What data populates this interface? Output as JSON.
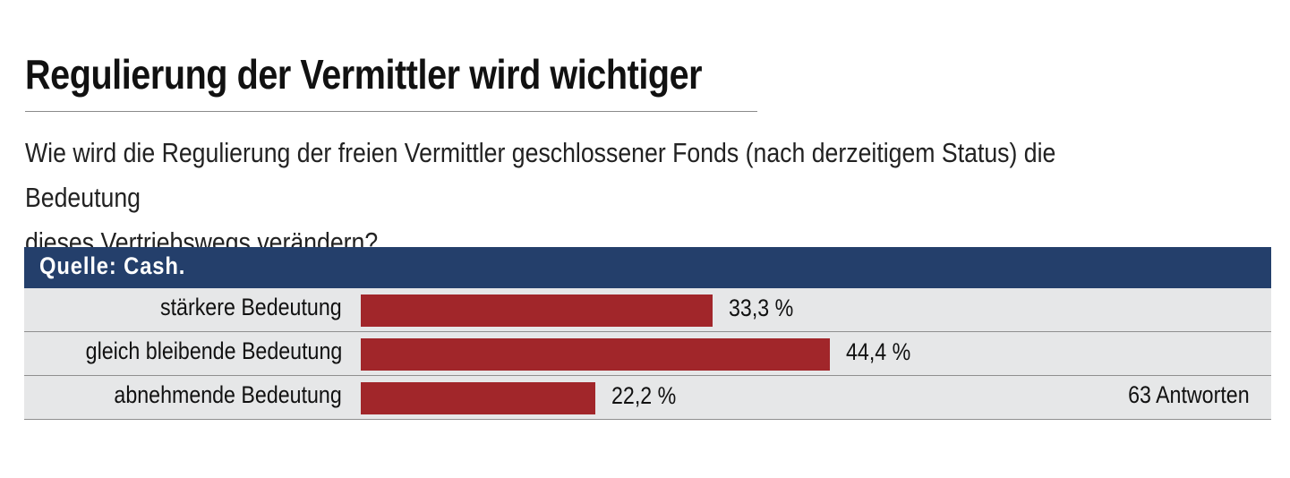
{
  "title": "Regulierung der Vermittler wird wichtiger",
  "subtitle_line1": "Wie wird die Regulierung der freien Vermittler geschlossener Fonds (nach derzeitigem Status) die Bedeutung",
  "subtitle_line2": "dieses Vertriebswegs verändern?",
  "colors": {
    "header_bg": "#243f6b",
    "bar": "#a1262a",
    "row_bg": "#e6e7e8"
  },
  "chart_data": {
    "type": "bar",
    "orientation": "horizontal",
    "source": "Quelle: Cash.",
    "categories": [
      "stärkere Bedeutung",
      "gleich bleibende Bedeutung",
      "abnehmende Bedeutung"
    ],
    "values": [
      33.3,
      44.4,
      22.2
    ],
    "value_labels": [
      "33,3 %",
      "44,4 %",
      "22,2 %"
    ],
    "note": "63 Antworten",
    "xlim": [
      0,
      100
    ]
  }
}
